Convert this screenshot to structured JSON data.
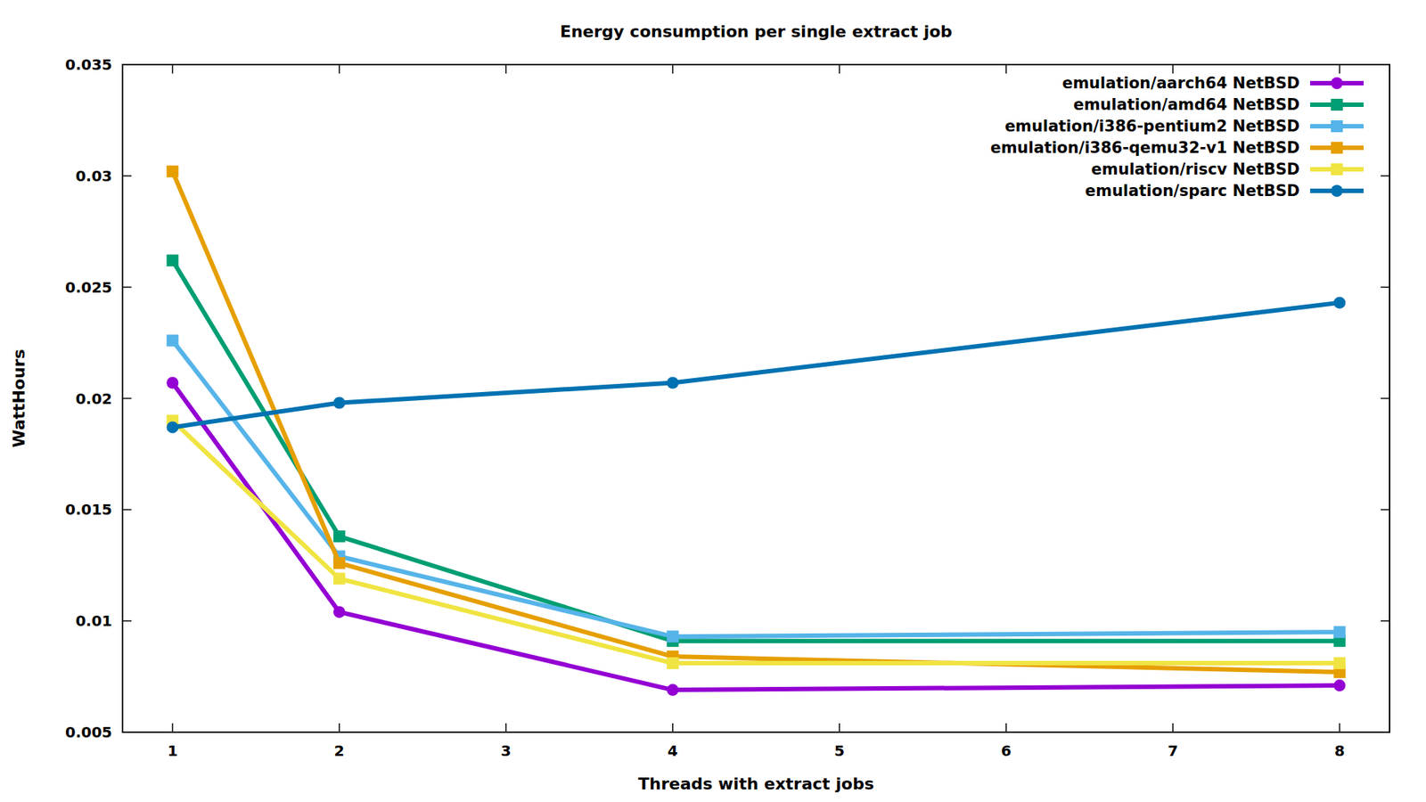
{
  "chart_data": {
    "type": "line",
    "title": "Energy consumption per single extract job",
    "x_label": "Threads with extract jobs",
    "y_label": "WattHours",
    "x": [
      1,
      2,
      4,
      8
    ],
    "xlim": [
      0.7,
      8.3
    ],
    "xticks": [
      1,
      2,
      3,
      4,
      5,
      6,
      7,
      8
    ],
    "ylim": [
      0.005,
      0.035
    ],
    "yticks": [
      0.005,
      0.01,
      0.015,
      0.02,
      0.025,
      0.03,
      0.035
    ],
    "grid": false,
    "legend": "top-right",
    "series": [
      {
        "name": "emulation/aarch64 NetBSD",
        "color": "#9400d3",
        "marker": "circle",
        "values": [
          0.0207,
          0.0104,
          0.0069,
          0.0071
        ]
      },
      {
        "name": "emulation/amd64 NetBSD",
        "color": "#009e73",
        "marker": "square",
        "values": [
          0.0262,
          0.0138,
          0.0091,
          0.0091
        ]
      },
      {
        "name": "emulation/i386-pentium2 NetBSD",
        "color": "#56b4e9",
        "marker": "square",
        "values": [
          0.0226,
          0.0129,
          0.0093,
          0.0095
        ]
      },
      {
        "name": "emulation/i386-qemu32-v1 NetBSD",
        "color": "#e69f00",
        "marker": "square",
        "values": [
          0.0302,
          0.0126,
          0.0084,
          0.0077
        ]
      },
      {
        "name": "emulation/riscv NetBSD",
        "color": "#f0e442",
        "marker": "square",
        "values": [
          0.019,
          0.0119,
          0.0081,
          0.0081
        ]
      },
      {
        "name": "emulation/sparc NetBSD",
        "color": "#0072b2",
        "marker": "circle",
        "values": [
          0.0187,
          0.0198,
          0.0207,
          0.0243
        ]
      }
    ]
  }
}
